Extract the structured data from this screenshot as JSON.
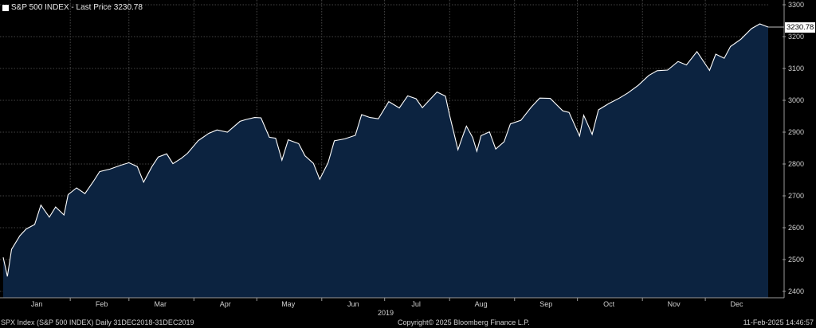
{
  "legend": {
    "label": "S&P 500 INDEX - Last Price 3230.78"
  },
  "last_price_tag": "3230.78",
  "footer": {
    "left": "SPX Index (S&P 500 INDEX)  Daily 31DEC2018-31DEC2019",
    "center": "Copyright© 2025 Bloomberg Finance L.P.",
    "right": "11-Feb-2025 14:46:57"
  },
  "colors": {
    "background": "#000000",
    "fill": "#0c2340",
    "line": "#ffffff",
    "grid": "#555555"
  },
  "chart_data": {
    "type": "area",
    "title": "S&P 500 INDEX - Last Price 3230.78",
    "xlabel": "2019",
    "ylabel": "",
    "ylim": [
      2380,
      3300
    ],
    "yticks": [
      2400,
      2500,
      2600,
      2700,
      2800,
      2900,
      3000,
      3100,
      3200,
      3300
    ],
    "grid": true,
    "legend_position": "top-left",
    "months": [
      "Jan",
      "Feb",
      "Mar",
      "Apr",
      "May",
      "Jun",
      "Jul",
      "Aug",
      "Sep",
      "Oct",
      "Nov",
      "Dec"
    ],
    "series": [
      {
        "name": "S&P 500 INDEX",
        "x": [
          "2018-12-31",
          "2019-01-02",
          "2019-01-04",
          "2019-01-08",
          "2019-01-11",
          "2019-01-15",
          "2019-01-18",
          "2019-01-22",
          "2019-01-25",
          "2019-01-29",
          "2019-01-31",
          "2019-02-04",
          "2019-02-08",
          "2019-02-12",
          "2019-02-15",
          "2019-02-20",
          "2019-02-25",
          "2019-03-01",
          "2019-03-05",
          "2019-03-08",
          "2019-03-12",
          "2019-03-15",
          "2019-03-19",
          "2019-03-22",
          "2019-03-26",
          "2019-03-29",
          "2019-04-03",
          "2019-04-08",
          "2019-04-12",
          "2019-04-17",
          "2019-04-23",
          "2019-04-26",
          "2019-04-30",
          "2019-05-03",
          "2019-05-07",
          "2019-05-10",
          "2019-05-13",
          "2019-05-16",
          "2019-05-21",
          "2019-05-24",
          "2019-05-28",
          "2019-05-31",
          "2019-06-04",
          "2019-06-07",
          "2019-06-12",
          "2019-06-17",
          "2019-06-20",
          "2019-06-24",
          "2019-06-28",
          "2019-07-03",
          "2019-07-08",
          "2019-07-12",
          "2019-07-16",
          "2019-07-19",
          "2019-07-23",
          "2019-07-26",
          "2019-07-30",
          "2019-08-01",
          "2019-08-05",
          "2019-08-07",
          "2019-08-09",
          "2019-08-12",
          "2019-08-14",
          "2019-08-16",
          "2019-08-20",
          "2019-08-23",
          "2019-08-27",
          "2019-08-30",
          "2019-09-04",
          "2019-09-09",
          "2019-09-13",
          "2019-09-18",
          "2019-09-24",
          "2019-09-27",
          "2019-10-02",
          "2019-10-04",
          "2019-10-08",
          "2019-10-11",
          "2019-10-16",
          "2019-10-21",
          "2019-10-25",
          "2019-10-30",
          "2019-11-04",
          "2019-11-08",
          "2019-11-13",
          "2019-11-18",
          "2019-11-22",
          "2019-11-27",
          "2019-12-03",
          "2019-12-06",
          "2019-12-10",
          "2019-12-13",
          "2019-12-18",
          "2019-12-23",
          "2019-12-27",
          "2019-12-31"
        ],
        "values": [
          2507,
          2447,
          2532,
          2575,
          2596,
          2610,
          2671,
          2633,
          2665,
          2640,
          2704,
          2725,
          2707,
          2745,
          2776,
          2784,
          2796,
          2804,
          2792,
          2743,
          2792,
          2822,
          2832,
          2801,
          2818,
          2834,
          2873,
          2896,
          2907,
          2900,
          2934,
          2940,
          2946,
          2945,
          2884,
          2881,
          2812,
          2876,
          2864,
          2826,
          2802,
          2752,
          2804,
          2873,
          2879,
          2890,
          2955,
          2946,
          2942,
          2996,
          2976,
          3014,
          3005,
          2977,
          3005,
          3026,
          3013,
          2953,
          2845,
          2883,
          2919,
          2883,
          2840,
          2889,
          2901,
          2847,
          2870,
          2926,
          2937,
          2979,
          3007,
          3006,
          2967,
          2962,
          2888,
          2953,
          2893,
          2970,
          2990,
          3007,
          3023,
          3047,
          3078,
          3093,
          3095,
          3122,
          3111,
          3153,
          3094,
          3145,
          3132,
          3169,
          3192,
          3225,
          3240,
          3230
        ]
      }
    ]
  }
}
